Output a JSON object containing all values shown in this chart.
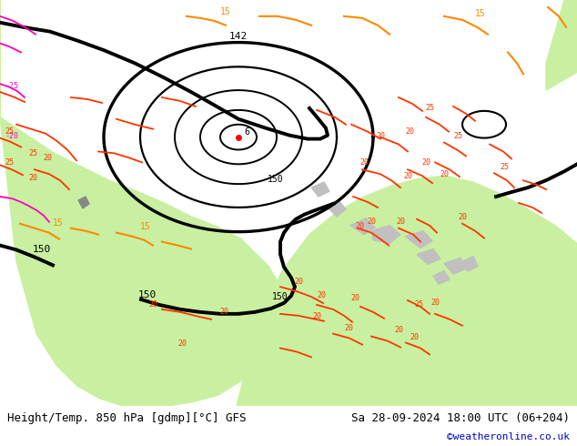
{
  "title_left": "Height/Temp. 850 hPa [gdmp][°C] GFS",
  "title_right": "Sa 28-09-2024 18:00 UTC (06+204)",
  "title_credit": "©weatheronline.co.uk",
  "background_color": "#ffffff",
  "land_color_green": "#c8f0a0",
  "land_color_gray": "#c0c0c0",
  "sea_color": "#ffffff",
  "contour_geopotential_color": "#000000",
  "contour_temp_positive_color": "#ff3300",
  "contour_temp_negative_color": "#ff00bb",
  "contour_temp_orange_color": "#ff8800",
  "bottom_bar_color": "#e0e0e0",
  "text_color": "#000000",
  "credit_color": "#0000cc",
  "label_fontsize": 7,
  "title_fontsize": 9,
  "credit_fontsize": 8
}
